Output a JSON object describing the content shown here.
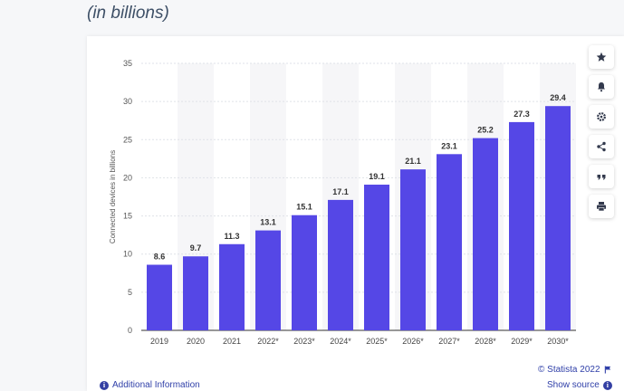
{
  "subtitle": "(in billions)",
  "toolbar": {
    "icons": [
      "star-icon",
      "bell-icon",
      "gear-icon",
      "share-icon",
      "quote-icon",
      "print-icon"
    ]
  },
  "footer": {
    "additional_info": "Additional Information",
    "copyright": "© Statista 2022",
    "show_source": "Show source"
  },
  "colors": {
    "bar": "#5547e6",
    "text": "#333333",
    "accent": "#2f3fa8"
  },
  "chart_data": {
    "type": "bar",
    "categories": [
      "2019",
      "2020",
      "2021",
      "2022*",
      "2023*",
      "2024*",
      "2025*",
      "2026*",
      "2027*",
      "2028*",
      "2029*",
      "2030*"
    ],
    "values": [
      8.6,
      9.7,
      11.3,
      13.1,
      15.1,
      17.1,
      19.1,
      21.1,
      23.1,
      25.2,
      27.3,
      29.4
    ],
    "value_labels": [
      "8.6",
      "9.7",
      "11.3",
      "13.1",
      "15.1",
      "17.1",
      "19.1",
      "21.1",
      "23.1",
      "25.2",
      "27.3",
      "29.4"
    ],
    "ylabel": "Connected devices in billions",
    "xlabel": "",
    "ylim": [
      0,
      35
    ],
    "yticks": [
      "0",
      "5",
      "10",
      "15",
      "20",
      "25",
      "30",
      "35"
    ],
    "grid": true
  }
}
